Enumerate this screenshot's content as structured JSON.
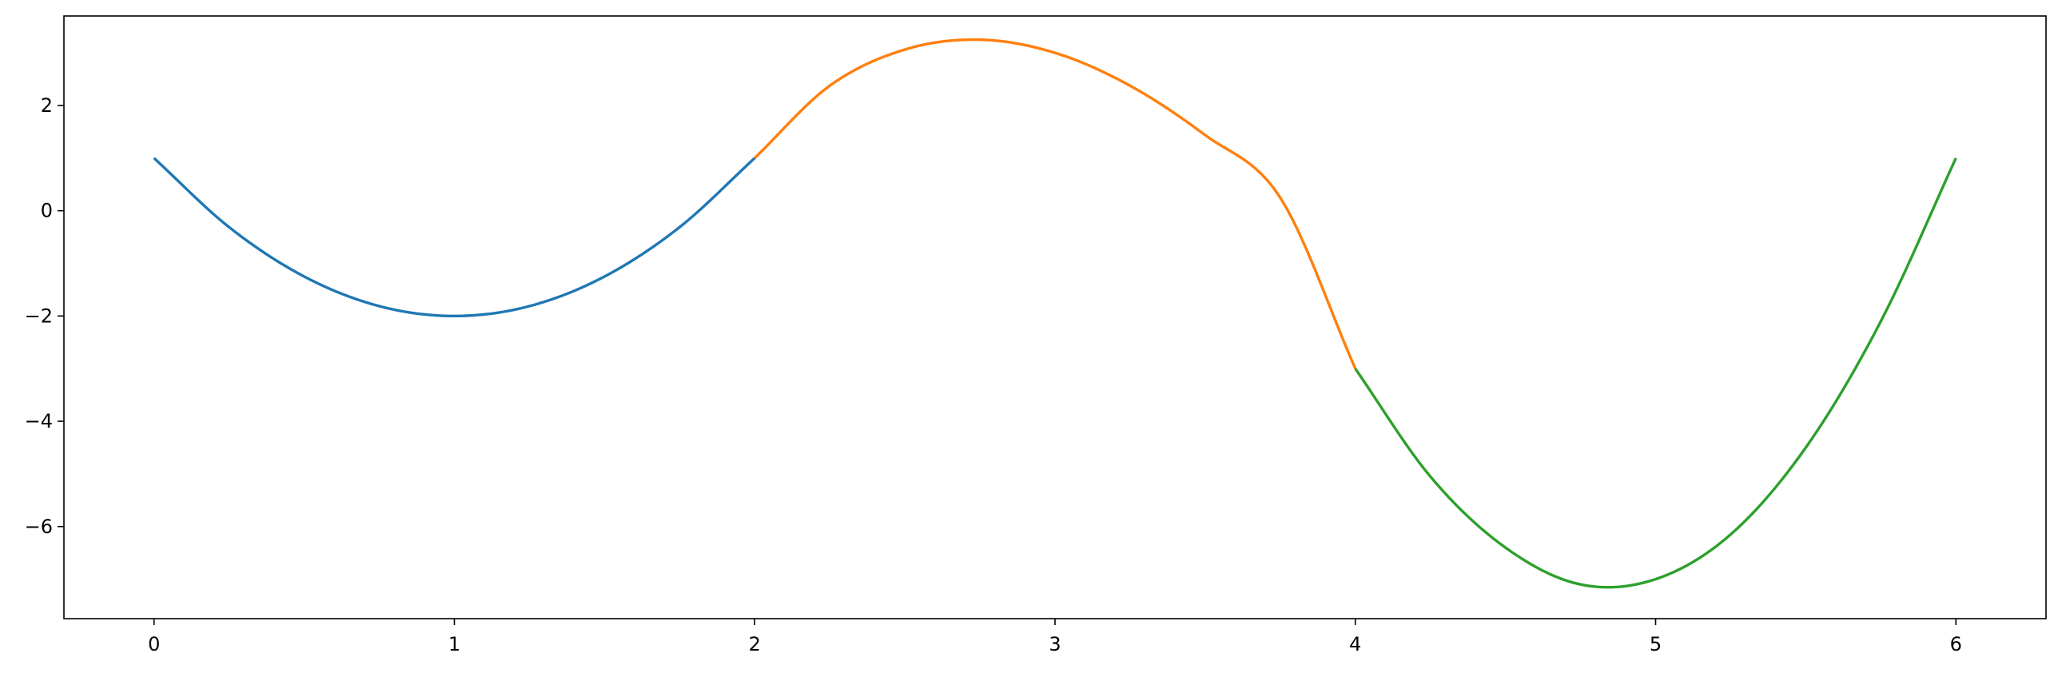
{
  "chart_data": {
    "type": "line",
    "title": "",
    "xlabel": "",
    "ylabel": "",
    "xlim": [
      -0.3,
      6.3
    ],
    "ylim": [
      -7.75,
      3.7
    ],
    "grid": false,
    "xticks": [
      0,
      1,
      2,
      3,
      4,
      5,
      6
    ],
    "xtick_labels": [
      "0",
      "1",
      "2",
      "3",
      "4",
      "5",
      "6"
    ],
    "yticks": [
      2,
      0,
      -2,
      -4,
      -6
    ],
    "ytick_labels": [
      "2",
      "0",
      "−2",
      "−4",
      "−6"
    ],
    "series": [
      {
        "color": "#1f77b4",
        "x": [
          0,
          0.25,
          0.5,
          0.75,
          1.0,
          1.25,
          1.5,
          1.75,
          2.0
        ],
        "y": [
          1.0,
          -0.3125,
          -1.25,
          -1.8125,
          -2.0,
          -1.8125,
          -1.25,
          -0.3125,
          1.0
        ]
      },
      {
        "color": "#ff7f0e",
        "x": [
          2.0,
          2.25,
          2.5,
          2.75,
          3.0,
          3.25,
          3.5,
          3.75,
          4.0
        ],
        "y": [
          1.0,
          2.375,
          3.0625,
          3.25,
          3.0,
          2.375,
          1.4375,
          0.25,
          -3.0
        ]
      },
      {
        "color": "#2ca02c",
        "x": [
          4.0,
          4.25,
          4.5,
          4.75,
          5.0,
          5.25,
          5.5,
          5.75,
          6.0
        ],
        "y": [
          -3.0,
          -5.05,
          -6.4,
          -7.1,
          -7.0,
          -6.15,
          -4.5,
          -2.1,
          1.0
        ]
      }
    ]
  }
}
